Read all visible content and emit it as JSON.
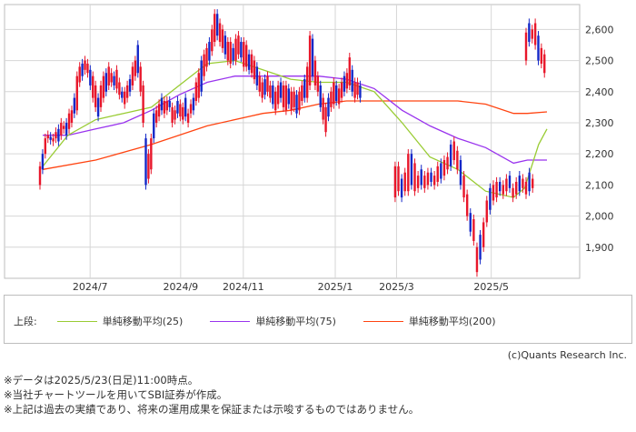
{
  "chart_data": {
    "type": "candlestick",
    "x_ticks": [
      "2024/7",
      "2024/9",
      "2024/11",
      "2025/1",
      "2025/3",
      "2025/5"
    ],
    "y_ticks": [
      "1,900",
      "2,000",
      "2,100",
      "2,200",
      "2,300",
      "2,400",
      "2,500",
      "2,600"
    ],
    "ylim": [
      1800,
      2680
    ],
    "grid": true,
    "colors": {
      "up": "#e8162a",
      "down": "#1428c8",
      "ma25": "#99cc33",
      "ma75": "#9933ee",
      "ma200": "#ff4411"
    },
    "legend_title": "上段:",
    "legend": [
      {
        "key": "ma25",
        "label": "単純移動平均(25)"
      },
      {
        "key": "ma75",
        "label": "単純移動平均(75)"
      },
      {
        "key": "ma200",
        "label": "単純移動平均(200)"
      }
    ],
    "candles": [
      [
        2100,
        2160
      ],
      [
        2150,
        2200
      ],
      [
        2200,
        2250
      ],
      [
        2250,
        2260
      ],
      [
        2245,
        2255
      ],
      [
        2240,
        2250
      ],
      [
        2250,
        2270
      ],
      [
        2240,
        2280
      ],
      [
        2260,
        2300
      ],
      [
        2280,
        2290
      ],
      [
        2260,
        2300
      ],
      [
        2280,
        2330
      ],
      [
        2300,
        2340
      ],
      [
        2330,
        2380
      ],
      [
        2340,
        2450
      ],
      [
        2430,
        2480
      ],
      [
        2450,
        2490
      ],
      [
        2470,
        2500
      ],
      [
        2460,
        2490
      ],
      [
        2420,
        2470
      ],
      [
        2380,
        2450
      ],
      [
        2350,
        2420
      ],
      [
        2320,
        2380
      ],
      [
        2350,
        2420
      ],
      [
        2380,
        2450
      ],
      [
        2400,
        2460
      ],
      [
        2420,
        2480
      ],
      [
        2430,
        2460
      ],
      [
        2420,
        2450
      ],
      [
        2410,
        2470
      ],
      [
        2390,
        2430
      ],
      [
        2380,
        2400
      ],
      [
        2360,
        2400
      ],
      [
        2380,
        2420
      ],
      [
        2400,
        2440
      ],
      [
        2420,
        2480
      ],
      [
        2450,
        2500
      ],
      [
        2460,
        2550
      ],
      [
        2400,
        2480
      ],
      [
        2300,
        2420
      ],
      [
        2100,
        2250
      ],
      [
        2120,
        2200
      ],
      [
        2150,
        2250
      ],
      [
        2250,
        2330
      ],
      [
        2300,
        2340
      ],
      [
        2320,
        2360
      ],
      [
        2340,
        2380
      ],
      [
        2330,
        2370
      ],
      [
        2340,
        2370
      ],
      [
        2350,
        2370
      ],
      [
        2300,
        2350
      ],
      [
        2310,
        2340
      ],
      [
        2330,
        2370
      ],
      [
        2320,
        2360
      ],
      [
        2310,
        2350
      ],
      [
        2320,
        2380
      ],
      [
        2300,
        2330
      ],
      [
        2330,
        2360
      ],
      [
        2340,
        2380
      ],
      [
        2370,
        2430
      ],
      [
        2380,
        2460
      ],
      [
        2400,
        2500
      ],
      [
        2450,
        2520
      ],
      [
        2480,
        2540
      ],
      [
        2500,
        2560
      ],
      [
        2530,
        2600
      ],
      [
        2560,
        2650
      ],
      [
        2580,
        2650
      ],
      [
        2560,
        2620
      ],
      [
        2540,
        2600
      ],
      [
        2520,
        2580
      ],
      [
        2500,
        2560
      ],
      [
        2490,
        2560
      ],
      [
        2500,
        2540
      ],
      [
        2500,
        2570
      ],
      [
        2520,
        2580
      ],
      [
        2510,
        2560
      ],
      [
        2480,
        2560
      ],
      [
        2480,
        2550
      ],
      [
        2470,
        2520
      ],
      [
        2460,
        2520
      ],
      [
        2440,
        2500
      ],
      [
        2420,
        2480
      ],
      [
        2400,
        2450
      ],
      [
        2380,
        2430
      ],
      [
        2390,
        2440
      ],
      [
        2400,
        2450
      ],
      [
        2380,
        2420
      ],
      [
        2360,
        2420
      ],
      [
        2340,
        2400
      ],
      [
        2360,
        2420
      ],
      [
        2380,
        2430
      ],
      [
        2350,
        2420
      ],
      [
        2340,
        2420
      ],
      [
        2360,
        2410
      ],
      [
        2340,
        2400
      ],
      [
        2350,
        2400
      ],
      [
        2330,
        2390
      ],
      [
        2340,
        2400
      ],
      [
        2370,
        2420
      ],
      [
        2380,
        2440
      ],
      [
        2380,
        2480
      ],
      [
        2420,
        2580
      ],
      [
        2450,
        2570
      ],
      [
        2420,
        2500
      ],
      [
        2400,
        2450
      ],
      [
        2350,
        2420
      ],
      [
        2310,
        2380
      ],
      [
        2270,
        2350
      ],
      [
        2320,
        2380
      ],
      [
        2350,
        2400
      ],
      [
        2360,
        2430
      ],
      [
        2370,
        2420
      ],
      [
        2360,
        2410
      ],
      [
        2380,
        2430
      ],
      [
        2400,
        2450
      ],
      [
        2410,
        2460
      ],
      [
        2420,
        2510
      ],
      [
        2400,
        2470
      ],
      [
        2380,
        2430
      ],
      [
        2390,
        2430
      ],
      [
        2380,
        2420
      ],
      [
        2060,
        2160
      ],
      [
        2080,
        2160
      ],
      [
        2060,
        2120
      ],
      [
        2080,
        2140
      ],
      [
        2080,
        2200
      ],
      [
        2100,
        2200
      ],
      [
        2080,
        2170
      ],
      [
        2090,
        2130
      ],
      [
        2100,
        2150
      ],
      [
        2090,
        2130
      ],
      [
        2100,
        2140
      ],
      [
        2110,
        2140
      ],
      [
        2100,
        2130
      ],
      [
        2110,
        2160
      ],
      [
        2120,
        2170
      ],
      [
        2130,
        2180
      ],
      [
        2150,
        2190
      ],
      [
        2160,
        2230
      ],
      [
        2180,
        2240
      ],
      [
        2150,
        2210
      ],
      [
        2100,
        2180
      ],
      [
        2060,
        2130
      ],
      [
        2000,
        2070
      ],
      [
        1950,
        2010
      ],
      [
        1920,
        1990
      ],
      [
        1820,
        1900
      ],
      [
        1860,
        1940
      ],
      [
        1900,
        1980
      ],
      [
        1980,
        2050
      ],
      [
        2020,
        2090
      ],
      [
        2050,
        2100
      ],
      [
        2060,
        2110
      ],
      [
        2080,
        2110
      ],
      [
        2070,
        2100
      ],
      [
        2080,
        2120
      ],
      [
        2090,
        2130
      ],
      [
        2060,
        2090
      ],
      [
        2070,
        2110
      ],
      [
        2080,
        2130
      ],
      [
        2090,
        2120
      ],
      [
        2070,
        2110
      ],
      [
        2080,
        2140
      ],
      [
        2090,
        2120
      ],
      [
        2500,
        2590
      ],
      [
        2560,
        2620
      ],
      [
        2570,
        2600
      ],
      [
        2550,
        2620
      ],
      [
        2500,
        2580
      ],
      [
        2490,
        2540
      ],
      [
        2460,
        2520
      ]
    ],
    "ma25": [
      [
        2,
        2160
      ],
      [
        20,
        2260
      ],
      [
        40,
        2310
      ],
      [
        60,
        2330
      ],
      [
        80,
        2350
      ],
      [
        100,
        2420
      ],
      [
        120,
        2490
      ],
      [
        140,
        2500
      ],
      [
        160,
        2470
      ],
      [
        180,
        2440
      ],
      [
        200,
        2430
      ],
      [
        220,
        2430
      ],
      [
        240,
        2400
      ],
      [
        260,
        2300
      ],
      [
        280,
        2190
      ],
      [
        300,
        2150
      ],
      [
        320,
        2080
      ],
      [
        340,
        2060
      ],
      [
        348,
        2090
      ],
      [
        358,
        2230
      ],
      [
        364,
        2280
      ]
    ],
    "ma75": [
      [
        2,
        2260
      ],
      [
        20,
        2260
      ],
      [
        40,
        2280
      ],
      [
        60,
        2300
      ],
      [
        80,
        2340
      ],
      [
        100,
        2390
      ],
      [
        120,
        2430
      ],
      [
        140,
        2450
      ],
      [
        160,
        2450
      ],
      [
        180,
        2450
      ],
      [
        200,
        2450
      ],
      [
        220,
        2440
      ],
      [
        240,
        2410
      ],
      [
        260,
        2340
      ],
      [
        280,
        2290
      ],
      [
        300,
        2250
      ],
      [
        320,
        2220
      ],
      [
        340,
        2170
      ],
      [
        350,
        2180
      ],
      [
        364,
        2180
      ]
    ],
    "ma200": [
      [
        2,
        2150
      ],
      [
        40,
        2180
      ],
      [
        80,
        2230
      ],
      [
        120,
        2290
      ],
      [
        160,
        2330
      ],
      [
        180,
        2340
      ],
      [
        200,
        2360
      ],
      [
        220,
        2370
      ],
      [
        240,
        2370
      ],
      [
        260,
        2370
      ],
      [
        280,
        2370
      ],
      [
        300,
        2370
      ],
      [
        320,
        2360
      ],
      [
        340,
        2330
      ],
      [
        350,
        2330
      ],
      [
        364,
        2335
      ]
    ],
    "x_tick_index": [
      36,
      101,
      146,
      212,
      256,
      324
    ]
  },
  "copyright": "(c)Quants Research Inc.",
  "notes": [
    "※データは2025/5/23(日足)11:00時点。",
    "※当社チャートツールを用いてSBI証券が作成。",
    "※上記は過去の実績であり、将来の運用成果を保証または示唆するものではありません。"
  ]
}
